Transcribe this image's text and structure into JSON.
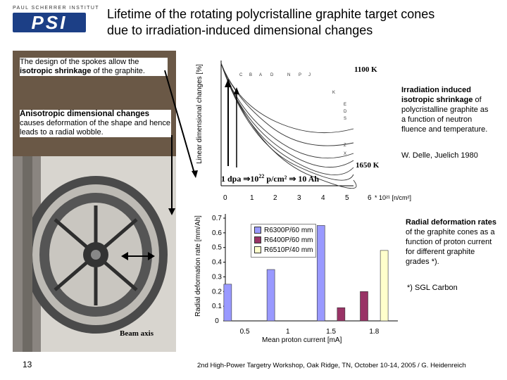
{
  "header": {
    "institute": "PAUL SCHERRER INSTITUT",
    "logo_text": "PSI",
    "title_line1": "Lifetime of the rotating polycristalline graphite target cones",
    "title_line2": "due to irradiation-induced dimensional changes"
  },
  "left": {
    "box1_text": "The design of the spokes allow the ",
    "box1_bold": "isotropic shrinkage",
    "box1_tail": " of the graphite.",
    "box2_head": "Anisotropic dimensional changes",
    "box2_text": "causes deformation of the shape and hence leads to a radial wobble.",
    "beam_axis": "Beam axis"
  },
  "top_chart": {
    "ylabel": "Linear dimensional changes [%]",
    "x_ticks": [
      "0",
      "1",
      "2",
      "3",
      "4",
      "5",
      "6"
    ],
    "x_unit": "* 10²¹ [n/cm²]",
    "label_1100": "1100 K",
    "label_1650": "1650 K",
    "dpa_line": "1 dpa ⇒10²² p/cm² ⇒ 10 Ah",
    "dpa_a": "1 dpa ",
    "dpa_b": "⇒10",
    "dpa_sup": "22",
    "dpa_c": " p/cm²  ⇒  10 Ah"
  },
  "iso_text": {
    "bold": "Irradiation induced isotropic shrinkage",
    "rest": " of polycristalline graphite as a function of neutron fluence and temperature.",
    "credit": "W. Delle, Juelich 1980"
  },
  "bottom_chart": {
    "ylabel": "Radial deformation rate [mm/Ah]",
    "xlabel": "Mean proton current [mA]",
    "y_ticks": [
      "0",
      "0.1",
      "0.2",
      "0.3",
      "0.4",
      "0.5",
      "0.6",
      "0.7"
    ]
  },
  "rad_text": {
    "bold": "Radial deformation rates",
    "rest": " of the graphite cones as a function of proton current for different graphite grades *).",
    "footnote": "*) SGL Carbon"
  },
  "chart_data": {
    "type": "bar",
    "categories": [
      "0.5",
      "1",
      "1.5",
      "1.8"
    ],
    "series": [
      {
        "name": "R6300P/60 mm",
        "color": "#9999ff",
        "values": [
          0.25,
          0.35,
          0.65,
          null
        ]
      },
      {
        "name": "R6400P/60 mm",
        "color": "#993366",
        "values": [
          null,
          null,
          0.09,
          0.2
        ]
      },
      {
        "name": "R6510P/40 mm",
        "color": "#ffffcc",
        "values": [
          null,
          null,
          null,
          0.48
        ]
      }
    ],
    "xlabel": "Mean proton current [mA]",
    "ylabel": "Radial deformation rate [mm/Ah]",
    "ylim": [
      0,
      0.7
    ],
    "grid": false,
    "legend": "top-left"
  },
  "footer": {
    "page_number": "13",
    "text": "2nd High-Power Targetry Workshop, Oak Ridge, TN, October 10-14, 2005    /   G. Heidenreich"
  }
}
